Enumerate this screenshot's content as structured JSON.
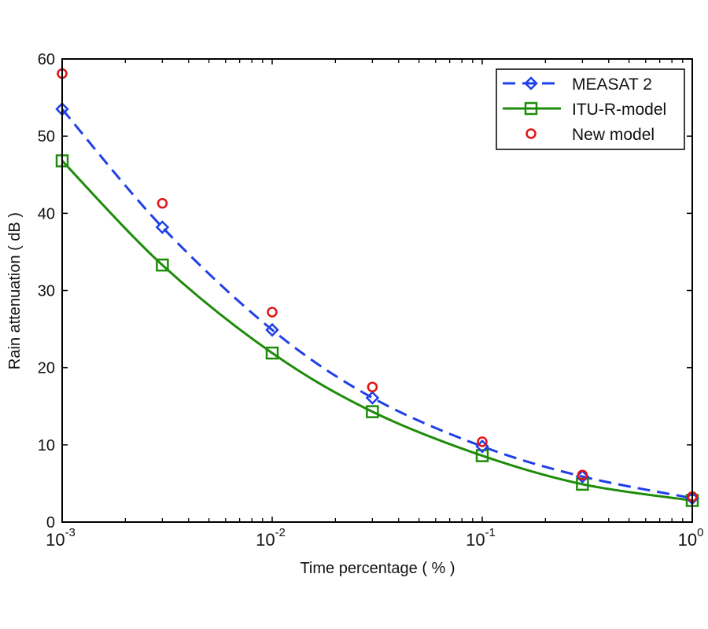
{
  "chart_data": {
    "type": "line",
    "title": "",
    "xlabel": "Time percentage ( % )",
    "ylabel": "Rain attenuation ( dB )",
    "xscale": "log",
    "xlim": [
      0.001,
      1
    ],
    "ylim": [
      0,
      60
    ],
    "x_ticks": [
      {
        "value": 0.001,
        "base": "10",
        "exp": "-3"
      },
      {
        "value": 0.01,
        "base": "10",
        "exp": "-2"
      },
      {
        "value": 0.1,
        "base": "10",
        "exp": "-1"
      },
      {
        "value": 1,
        "base": "10",
        "exp": "0"
      }
    ],
    "y_ticks": [
      0,
      10,
      20,
      30,
      40,
      50,
      60
    ],
    "grid": false,
    "legend_position": "top-right",
    "x": [
      0.001,
      0.003,
      0.01,
      0.03,
      0.1,
      0.3,
      1
    ],
    "series": [
      {
        "name": "MEASAT 2",
        "color": "#1f3fe8",
        "line_style": "dashed",
        "marker": "diamond",
        "values": [
          53.5,
          38.2,
          24.9,
          16.1,
          9.8,
          5.9,
          3.1
        ]
      },
      {
        "name": "ITU-R-model",
        "color": "#1e8c0a",
        "line_style": "solid",
        "marker": "square",
        "values": [
          46.8,
          33.3,
          21.9,
          14.3,
          8.6,
          4.9,
          2.8
        ]
      },
      {
        "name": "New model",
        "color": "#e01515",
        "line_style": "none",
        "marker": "circle",
        "values": [
          58.1,
          41.3,
          27.2,
          17.5,
          10.4,
          6.1,
          3.3
        ]
      }
    ]
  }
}
